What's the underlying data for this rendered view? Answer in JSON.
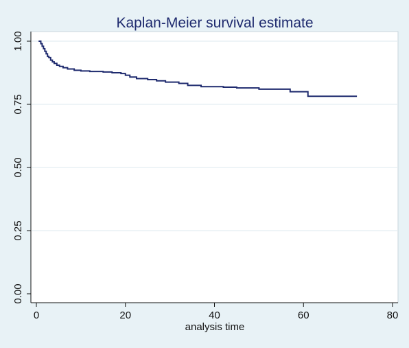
{
  "chart_data": {
    "type": "line",
    "title": "Kaplan-Meier survival estimate",
    "xlabel": "analysis time",
    "ylabel": "",
    "xlim": [
      0,
      80
    ],
    "ylim": [
      0,
      1
    ],
    "x_ticks": [
      0,
      20,
      40,
      60,
      80
    ],
    "y_ticks": [
      0,
      0.25,
      0.5,
      0.75,
      1
    ],
    "x_tick_labels": [
      "0",
      "20",
      "40",
      "60",
      "80"
    ],
    "y_tick_labels": [
      "0.00",
      "0.25",
      "0.50",
      "0.75",
      "1.00"
    ],
    "grid": "horizontal",
    "step": true,
    "series": [
      {
        "color": "#1e2a6e",
        "x": [
          0.5,
          1.0,
          1.3,
          1.6,
          1.9,
          2.2,
          2.5,
          2.8,
          3.2,
          3.6,
          4.0,
          4.6,
          5.2,
          6.0,
          7.0,
          8.5,
          10.0,
          12.0,
          15.0,
          17.0,
          19.0,
          20.0,
          21.0,
          22.5,
          25.0,
          27.0,
          29.0,
          32.0,
          34.0,
          37.0,
          42.0,
          45.0,
          50.0,
          57.0,
          61.0,
          72.0
        ],
        "y": [
          1.0,
          0.99,
          0.98,
          0.97,
          0.96,
          0.95,
          0.94,
          0.935,
          0.925,
          0.918,
          0.912,
          0.905,
          0.9,
          0.895,
          0.89,
          0.885,
          0.882,
          0.88,
          0.878,
          0.875,
          0.872,
          0.865,
          0.858,
          0.852,
          0.848,
          0.843,
          0.838,
          0.833,
          0.825,
          0.82,
          0.818,
          0.815,
          0.81,
          0.8,
          0.782,
          0.782
        ]
      }
    ]
  }
}
